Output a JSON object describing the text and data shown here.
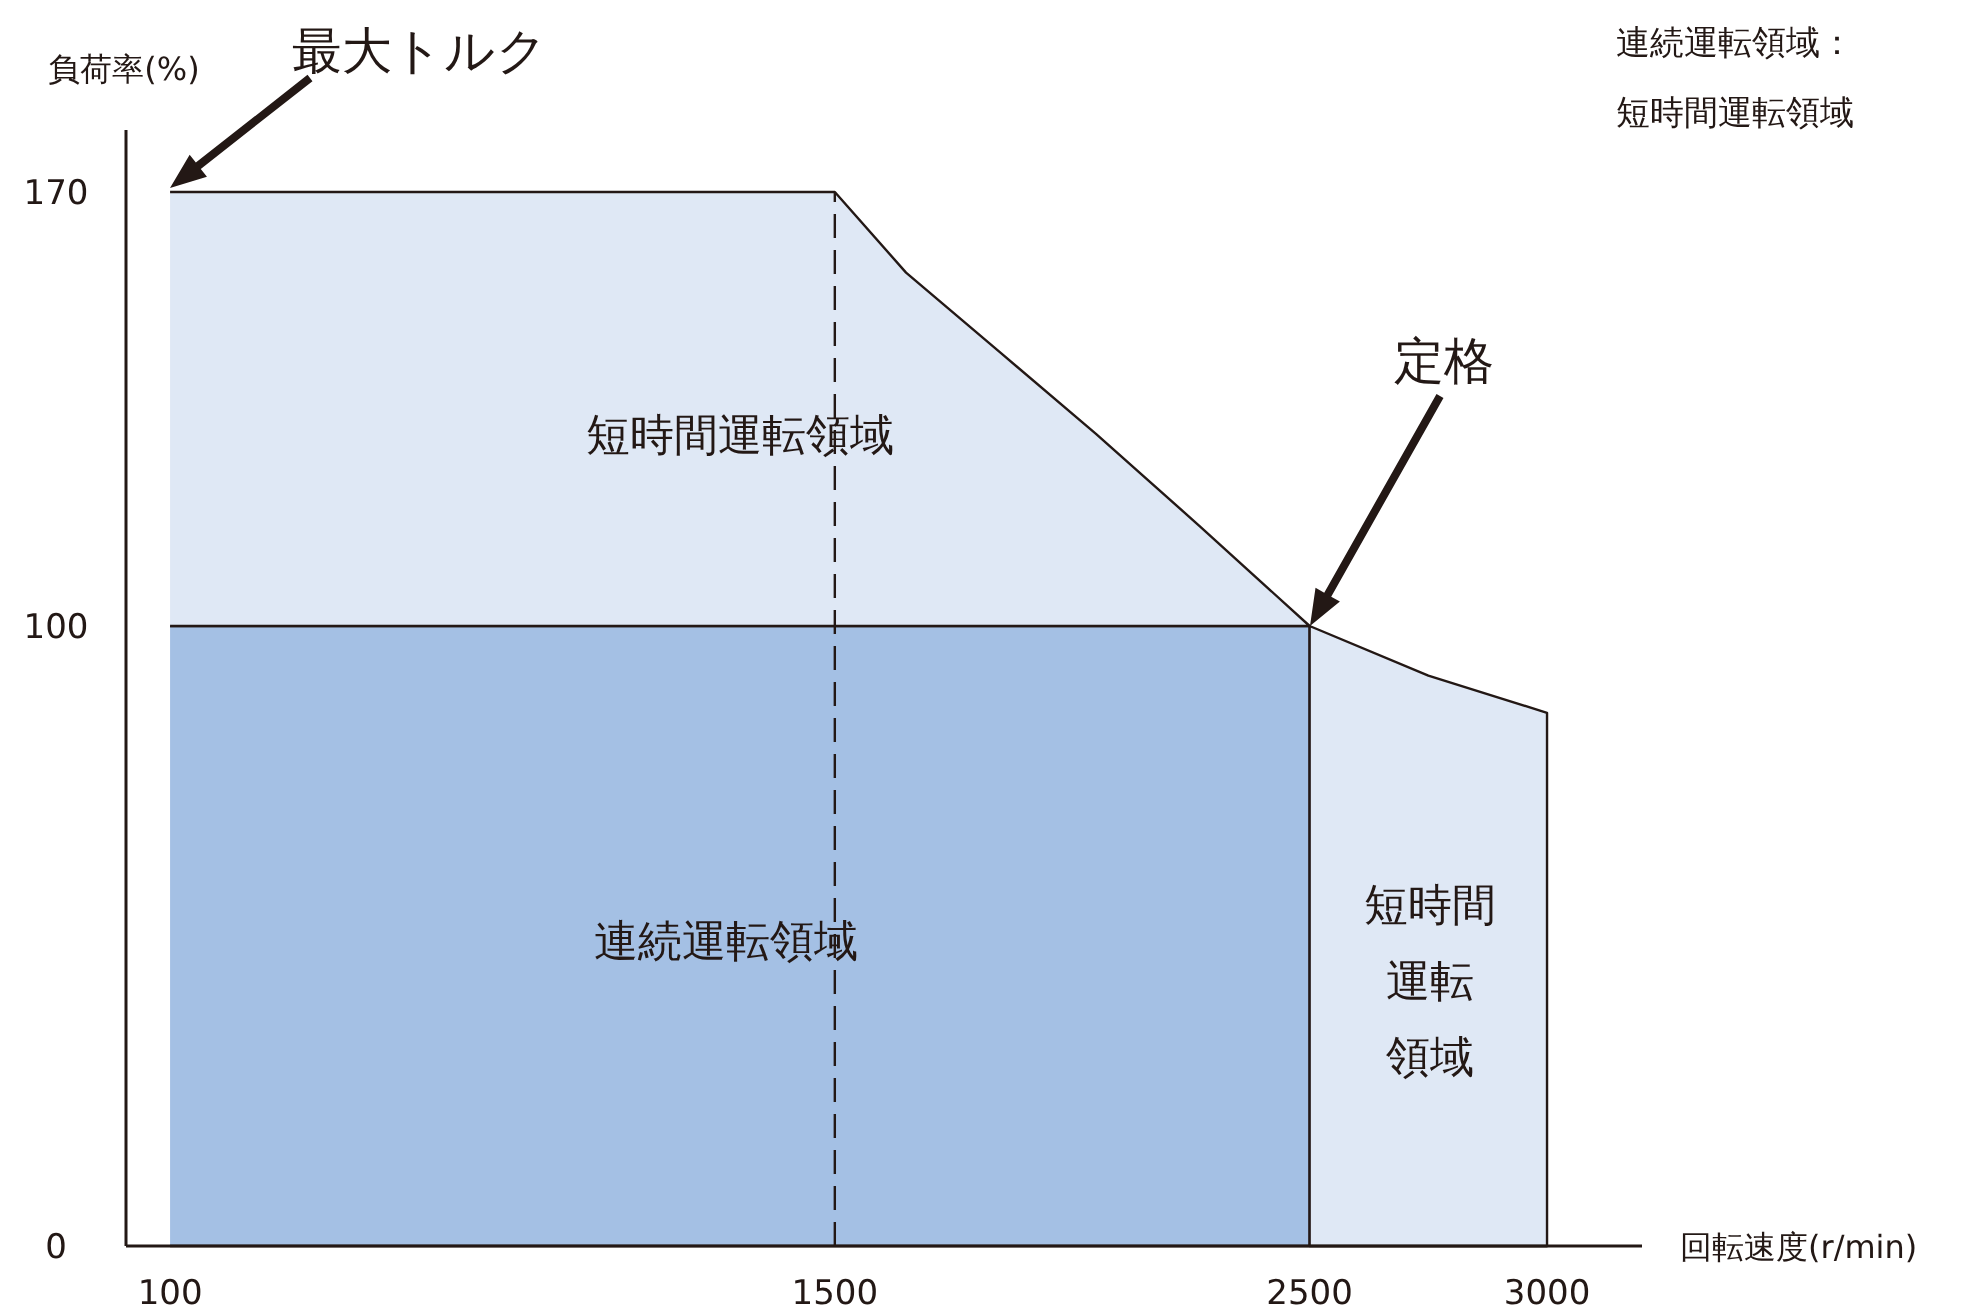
{
  "chart_data": {
    "type": "area",
    "stacked": true,
    "xlabel": "回転速度(r/min)",
    "ylabel": "負荷率(%)",
    "xlim": [
      0,
      3200
    ],
    "ylim": [
      0,
      180
    ],
    "xticks": [
      100,
      1500,
      2500,
      3000
    ],
    "yticks": [
      0,
      100,
      170
    ],
    "grid": false,
    "x": [
      100,
      1500,
      1650,
      1850,
      2050,
      2270,
      2500,
      2500,
      2750,
      3000
    ],
    "series": [
      {
        "color": "#a4c0e4",
        "values": [
          100,
          100,
          100,
          100,
          100,
          100,
          100,
          0,
          0,
          0
        ]
      },
      {
        "color": "#dfe8f5",
        "values": [
          70,
          70,
          57,
          44,
          31,
          16,
          0,
          100,
          92,
          86
        ]
      }
    ],
    "ref_lines": [
      {
        "axis": "x",
        "value": 1500,
        "line_style": "dashed",
        "color": "#231815"
      }
    ],
    "annotations": [
      "最大トルク",
      "定格",
      "短時間運転領域",
      "連続運転領域",
      "短時間",
      "運転",
      "領域",
      "連続運転領域：",
      "短時間運転領域"
    ]
  }
}
